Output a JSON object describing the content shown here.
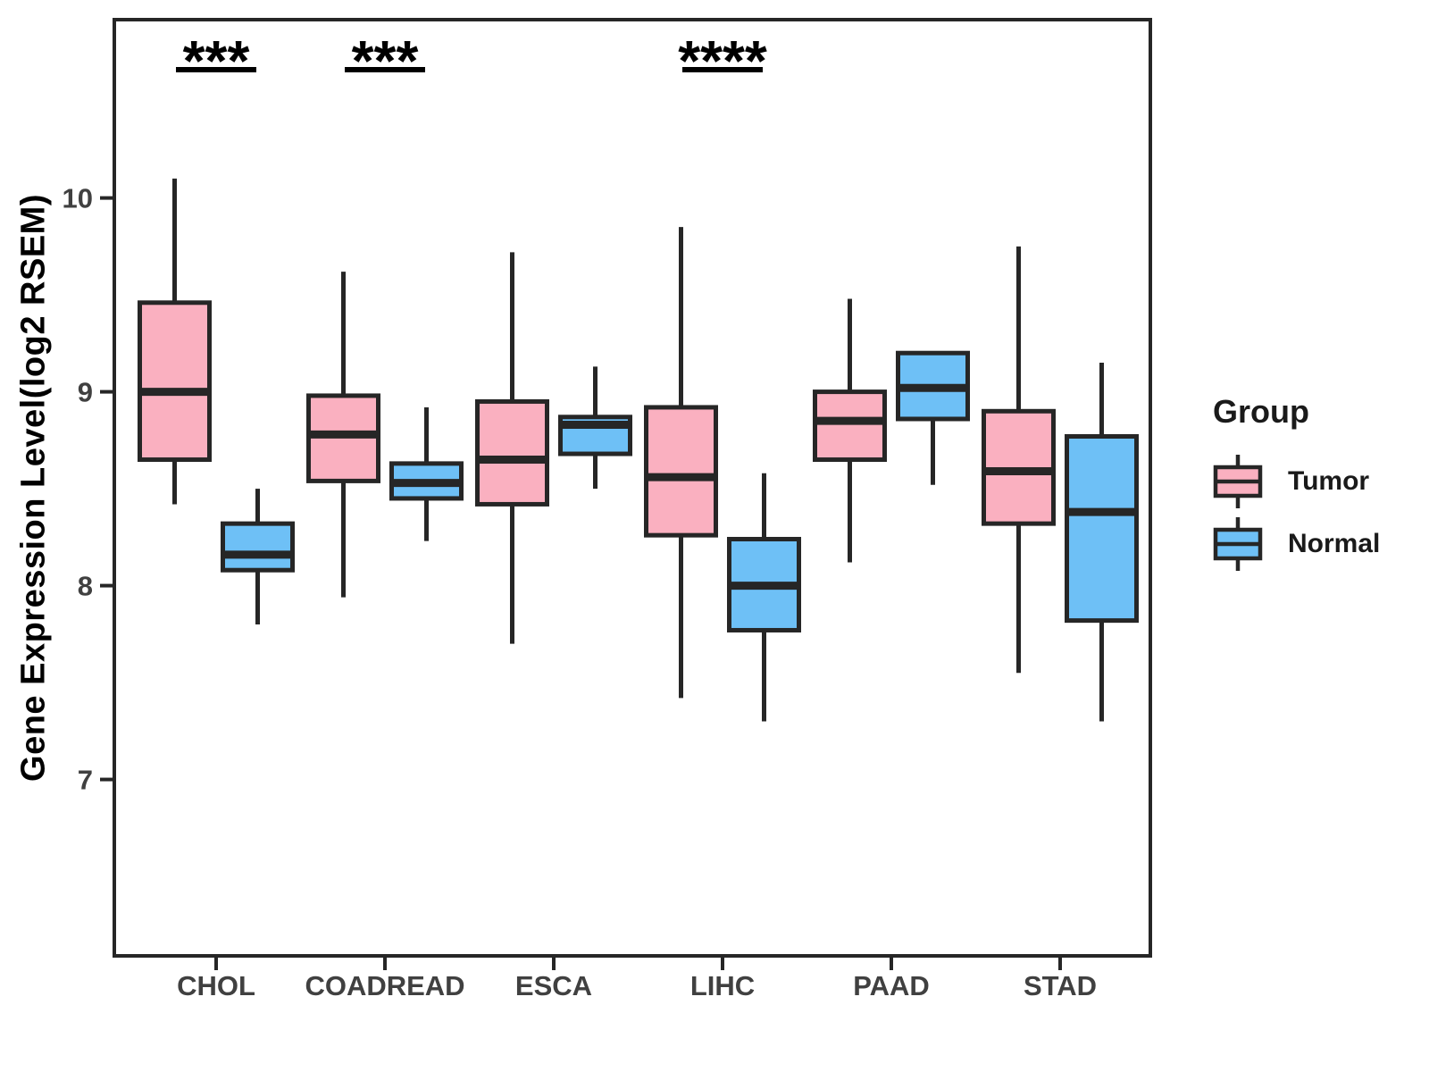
{
  "chart_data": {
    "type": "boxplot",
    "title": "",
    "xlabel": "",
    "ylabel": "Gene Expression Level(log2 RSEM)",
    "categories": [
      "CHOL",
      "COADREAD",
      "ESCA",
      "LIHC",
      "PAAD",
      "STAD"
    ],
    "y_ticks": [
      7,
      8,
      9,
      10
    ],
    "y_range": [
      6.09,
      10.92
    ],
    "grid": "off",
    "axis_color": "#262626",
    "tick_label_color": "#404040",
    "series": [
      {
        "name": "Tumor",
        "color": "#FAB0C0",
        "boxes": [
          {
            "category": "CHOL",
            "min": 8.42,
            "q1": 8.65,
            "median": 9.0,
            "q3": 9.46,
            "max": 10.1
          },
          {
            "category": "COADREAD",
            "min": 7.94,
            "q1": 8.54,
            "median": 8.78,
            "q3": 8.98,
            "max": 9.62
          },
          {
            "category": "ESCA",
            "min": 7.7,
            "q1": 8.42,
            "median": 8.65,
            "q3": 8.95,
            "max": 9.72
          },
          {
            "category": "LIHC",
            "min": 7.42,
            "q1": 8.26,
            "median": 8.56,
            "q3": 8.92,
            "max": 9.85
          },
          {
            "category": "PAAD",
            "min": 8.12,
            "q1": 8.65,
            "median": 8.85,
            "q3": 9.0,
            "max": 9.48
          },
          {
            "category": "STAD",
            "min": 7.55,
            "q1": 8.32,
            "median": 8.59,
            "q3": 8.9,
            "max": 9.75
          }
        ]
      },
      {
        "name": "Normal",
        "color": "#6EC0F6",
        "boxes": [
          {
            "category": "CHOL",
            "min": 7.8,
            "q1": 8.08,
            "median": 8.16,
            "q3": 8.32,
            "max": 8.5
          },
          {
            "category": "COADREAD",
            "min": 8.23,
            "q1": 8.45,
            "median": 8.53,
            "q3": 8.63,
            "max": 8.92
          },
          {
            "category": "ESCA",
            "min": 8.5,
            "q1": 8.68,
            "median": 8.83,
            "q3": 8.87,
            "max": 9.13
          },
          {
            "category": "LIHC",
            "min": 7.3,
            "q1": 7.77,
            "median": 8.0,
            "q3": 8.24,
            "max": 8.58
          },
          {
            "category": "PAAD",
            "min": 8.52,
            "q1": 8.86,
            "median": 9.02,
            "q3": 9.2,
            "max": 9.2
          },
          {
            "category": "STAD",
            "min": 7.3,
            "q1": 7.82,
            "median": 8.38,
            "q3": 8.77,
            "max": 9.15
          }
        ]
      }
    ],
    "significance": [
      {
        "category": "CHOL",
        "label": "***"
      },
      {
        "category": "COADREAD",
        "label": "***"
      },
      {
        "category": "LIHC",
        "label": "****"
      }
    ],
    "legend": {
      "title": "Group",
      "position": "right",
      "items": [
        {
          "label": "Tumor",
          "color": "#FAB0C0"
        },
        {
          "label": "Normal",
          "color": "#6EC0F6"
        }
      ]
    }
  }
}
